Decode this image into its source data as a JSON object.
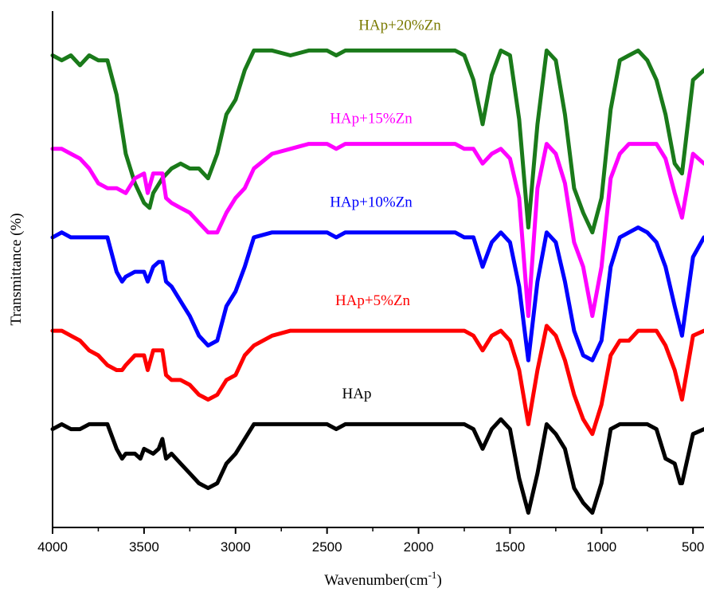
{
  "chart_data": {
    "type": "line",
    "title": "",
    "xlabel": "Wavenumber(cm",
    "xlabel_sup": "-1",
    "xlabel_close": ")",
    "ylabel": "Transmittance (%)",
    "xlim": [
      4000,
      440
    ],
    "x_reversed": true,
    "x_ticks": [
      4000,
      3500,
      3000,
      2500,
      2000,
      1500,
      1000,
      500
    ],
    "x_tick_labels": [
      "4000",
      "3500",
      "3000",
      "2500",
      "2000",
      "1500",
      "1000",
      "500"
    ],
    "y_ticks_shown": false,
    "grid": false,
    "legend": "none",
    "series": [
      {
        "name": "HAp+20%Zn",
        "color": "#1a7a1a",
        "label_color": "#7a7a00",
        "x": [
          4000,
          3950,
          3900,
          3850,
          3800,
          3750,
          3700,
          3650,
          3600,
          3550,
          3500,
          3470,
          3450,
          3400,
          3350,
          3300,
          3250,
          3200,
          3150,
          3100,
          3050,
          3000,
          2950,
          2900,
          2800,
          2700,
          2600,
          2500,
          2450,
          2400,
          2300,
          2200,
          2100,
          2000,
          1900,
          1800,
          1750,
          1700,
          1650,
          1600,
          1550,
          1500,
          1450,
          1400,
          1350,
          1300,
          1250,
          1200,
          1150,
          1100,
          1050,
          1000,
          950,
          900,
          850,
          800,
          750,
          700,
          650,
          600,
          560,
          500,
          440
        ],
        "values": [
          9.6,
          9.5,
          9.6,
          9.4,
          9.6,
          9.5,
          9.5,
          8.8,
          7.6,
          7.0,
          6.6,
          6.5,
          6.8,
          7.1,
          7.3,
          7.4,
          7.3,
          7.3,
          7.1,
          7.6,
          8.4,
          8.7,
          9.3,
          9.7,
          9.7,
          9.6,
          9.7,
          9.7,
          9.6,
          9.7,
          9.7,
          9.7,
          9.7,
          9.7,
          9.7,
          9.7,
          9.6,
          9.1,
          8.2,
          9.2,
          9.7,
          9.6,
          8.3,
          6.1,
          8.2,
          9.7,
          9.5,
          8.4,
          6.9,
          6.4,
          6.0,
          6.7,
          8.5,
          9.5,
          9.6,
          9.7,
          9.5,
          9.1,
          8.4,
          7.4,
          7.2,
          9.1,
          9.3
        ]
      },
      {
        "name": "HAp+15%Zn",
        "color": "#ff00ff",
        "label_color": "#ff00ff",
        "x": [
          4000,
          3950,
          3900,
          3850,
          3800,
          3750,
          3700,
          3650,
          3600,
          3550,
          3500,
          3480,
          3450,
          3420,
          3400,
          3380,
          3350,
          3300,
          3250,
          3200,
          3150,
          3100,
          3050,
          3000,
          2950,
          2900,
          2800,
          2700,
          2600,
          2500,
          2450,
          2400,
          2300,
          2200,
          2100,
          2000,
          1900,
          1800,
          1750,
          1700,
          1650,
          1600,
          1550,
          1500,
          1450,
          1400,
          1350,
          1300,
          1250,
          1200,
          1150,
          1100,
          1050,
          1000,
          950,
          900,
          850,
          800,
          750,
          700,
          650,
          600,
          560,
          500,
          440
        ],
        "values": [
          7.7,
          7.7,
          7.6,
          7.5,
          7.3,
          7.0,
          6.9,
          6.9,
          6.8,
          7.1,
          7.2,
          6.8,
          7.2,
          7.2,
          7.2,
          6.7,
          6.6,
          6.5,
          6.4,
          6.2,
          6.0,
          6.0,
          6.4,
          6.7,
          6.9,
          7.3,
          7.6,
          7.7,
          7.8,
          7.8,
          7.7,
          7.8,
          7.8,
          7.8,
          7.8,
          7.8,
          7.8,
          7.8,
          7.7,
          7.7,
          7.4,
          7.6,
          7.7,
          7.5,
          6.7,
          4.3,
          6.9,
          7.8,
          7.6,
          7.0,
          5.8,
          5.3,
          4.3,
          5.3,
          7.1,
          7.6,
          7.8,
          7.8,
          7.8,
          7.8,
          7.5,
          6.8,
          6.3,
          7.6,
          7.4
        ]
      },
      {
        "name": "HAp+10%Zn",
        "color": "#0000ff",
        "label_color": "#0000ff",
        "x": [
          4000,
          3950,
          3900,
          3850,
          3800,
          3750,
          3700,
          3650,
          3620,
          3600,
          3550,
          3500,
          3480,
          3450,
          3420,
          3400,
          3380,
          3350,
          3300,
          3250,
          3200,
          3150,
          3100,
          3050,
          3000,
          2950,
          2900,
          2800,
          2700,
          2600,
          2500,
          2450,
          2400,
          2300,
          2200,
          2100,
          2000,
          1900,
          1800,
          1750,
          1700,
          1650,
          1600,
          1550,
          1500,
          1450,
          1400,
          1350,
          1300,
          1250,
          1200,
          1150,
          1100,
          1050,
          1000,
          950,
          900,
          850,
          800,
          750,
          700,
          650,
          600,
          560,
          500,
          440
        ],
        "values": [
          5.9,
          6.0,
          5.9,
          5.9,
          5.9,
          5.9,
          5.9,
          5.2,
          5.0,
          5.1,
          5.2,
          5.2,
          5.0,
          5.3,
          5.4,
          5.4,
          5.0,
          4.9,
          4.6,
          4.3,
          3.9,
          3.7,
          3.8,
          4.5,
          4.8,
          5.3,
          5.9,
          6.0,
          6.0,
          6.0,
          6.0,
          5.9,
          6.0,
          6.0,
          6.0,
          6.0,
          6.0,
          6.0,
          6.0,
          5.9,
          5.9,
          5.3,
          5.8,
          6.0,
          5.8,
          4.9,
          3.4,
          5.0,
          6.0,
          5.8,
          5.0,
          4.0,
          3.5,
          3.4,
          3.8,
          5.3,
          5.9,
          6.0,
          6.1,
          6.0,
          5.8,
          5.3,
          4.5,
          3.9,
          5.5,
          5.9
        ]
      },
      {
        "name": "HAp+5%Zn",
        "color": "#ff0000",
        "label_color": "#ff0000",
        "x": [
          4000,
          3950,
          3900,
          3850,
          3800,
          3750,
          3700,
          3650,
          3620,
          3600,
          3550,
          3500,
          3480,
          3450,
          3420,
          3400,
          3380,
          3350,
          3300,
          3250,
          3200,
          3150,
          3100,
          3050,
          3000,
          2950,
          2900,
          2800,
          2700,
          2600,
          2500,
          2400,
          2300,
          2200,
          2100,
          2000,
          1900,
          1800,
          1750,
          1700,
          1650,
          1600,
          1550,
          1500,
          1450,
          1400,
          1350,
          1300,
          1250,
          1200,
          1150,
          1100,
          1050,
          1000,
          950,
          900,
          850,
          800,
          750,
          700,
          650,
          600,
          560,
          500,
          440
        ],
        "values": [
          4.0,
          4.0,
          3.9,
          3.8,
          3.6,
          3.5,
          3.3,
          3.2,
          3.2,
          3.3,
          3.5,
          3.5,
          3.2,
          3.6,
          3.6,
          3.6,
          3.1,
          3.0,
          3.0,
          2.9,
          2.7,
          2.6,
          2.7,
          3.0,
          3.1,
          3.5,
          3.7,
          3.9,
          4.0,
          4.0,
          4.0,
          4.0,
          4.0,
          4.0,
          4.0,
          4.0,
          4.0,
          4.0,
          4.0,
          3.9,
          3.6,
          3.9,
          4.0,
          3.8,
          3.2,
          2.1,
          3.2,
          4.1,
          3.9,
          3.4,
          2.7,
          2.2,
          1.9,
          2.5,
          3.5,
          3.8,
          3.8,
          4.0,
          4.0,
          4.0,
          3.7,
          3.2,
          2.6,
          3.9,
          4.0
        ]
      },
      {
        "name": "HAp",
        "color": "#000000",
        "label_color": "#000000",
        "x": [
          4000,
          3950,
          3900,
          3850,
          3800,
          3750,
          3700,
          3650,
          3620,
          3600,
          3550,
          3520,
          3500,
          3450,
          3420,
          3400,
          3380,
          3350,
          3300,
          3250,
          3200,
          3150,
          3100,
          3050,
          3000,
          2950,
          2900,
          2800,
          2700,
          2600,
          2500,
          2450,
          2400,
          2300,
          2200,
          2100,
          2000,
          1900,
          1800,
          1750,
          1700,
          1650,
          1600,
          1550,
          1500,
          1450,
          1400,
          1350,
          1300,
          1250,
          1200,
          1150,
          1100,
          1050,
          1000,
          950,
          900,
          850,
          800,
          750,
          700,
          650,
          600,
          570,
          560,
          500,
          440
        ],
        "values": [
          2.0,
          2.1,
          2.0,
          2.0,
          2.1,
          2.1,
          2.1,
          1.6,
          1.4,
          1.5,
          1.5,
          1.4,
          1.6,
          1.5,
          1.6,
          1.8,
          1.4,
          1.5,
          1.3,
          1.1,
          0.9,
          0.8,
          0.9,
          1.3,
          1.5,
          1.8,
          2.1,
          2.1,
          2.1,
          2.1,
          2.1,
          2.0,
          2.1,
          2.1,
          2.1,
          2.1,
          2.1,
          2.1,
          2.1,
          2.1,
          2.0,
          1.6,
          2.0,
          2.2,
          2.0,
          1.0,
          0.3,
          1.1,
          2.1,
          1.9,
          1.6,
          0.8,
          0.5,
          0.3,
          0.9,
          2.0,
          2.1,
          2.1,
          2.1,
          2.1,
          2.0,
          1.4,
          1.3,
          0.9,
          0.9,
          1.9,
          2.0
        ]
      }
    ]
  }
}
